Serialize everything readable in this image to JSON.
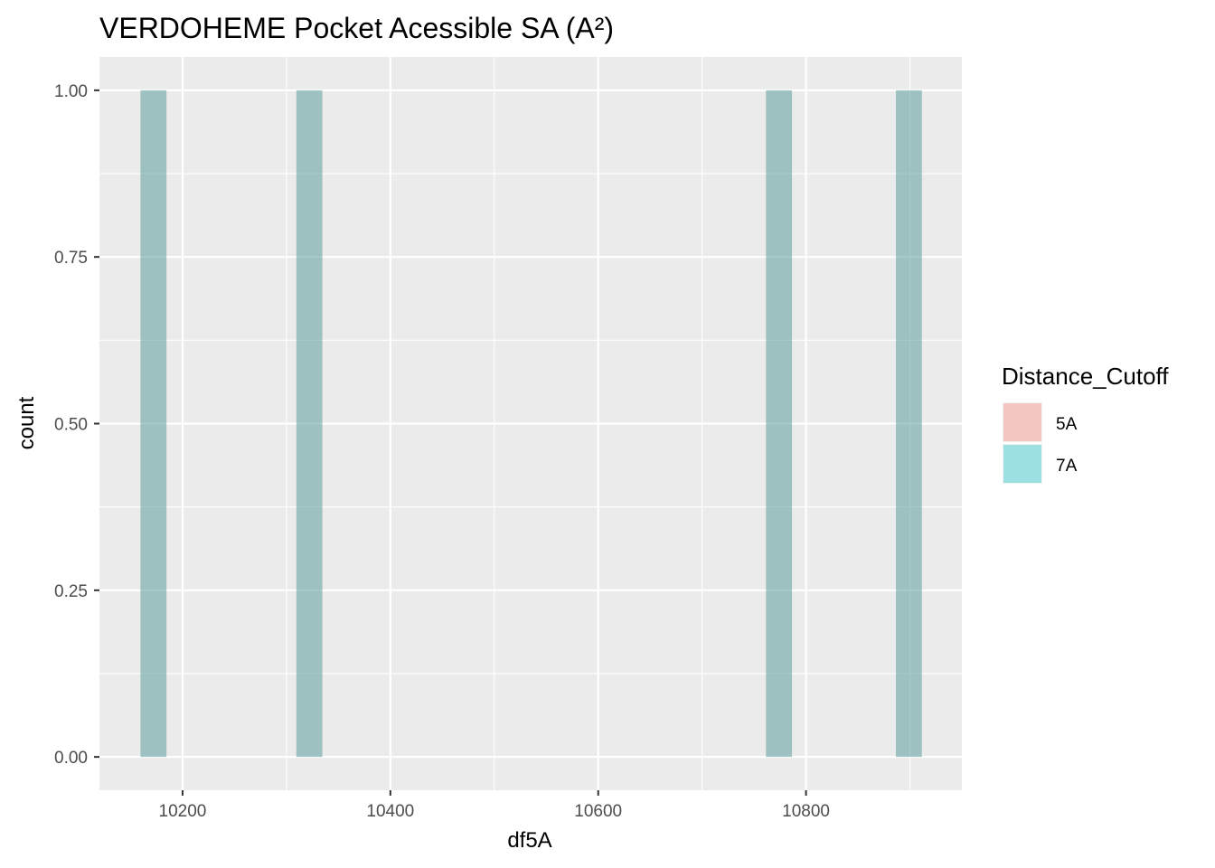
{
  "chart_data": {
    "type": "histogram",
    "title": "VERDOHEME Pocket Acessible SA (A²)",
    "xlabel": "df5A",
    "ylabel": "count",
    "xlim": [
      10120,
      10950
    ],
    "ylim": [
      -0.05,
      1.05
    ],
    "x_ticks": [
      10200,
      10400,
      10600,
      10800
    ],
    "x_tick_labels": [
      "10200",
      "10400",
      "10600",
      "10800"
    ],
    "y_ticks": [
      0.0,
      0.25,
      0.5,
      0.75,
      1.0
    ],
    "y_tick_labels": [
      "0.00",
      "0.25",
      "0.50",
      "0.75",
      "1.00"
    ],
    "grid": true,
    "bin_width": 25,
    "series": [
      {
        "name": "5A",
        "color": "#f8766d",
        "bins": [
          {
            "x": 10172,
            "count": 1
          },
          {
            "x": 10322,
            "count": 1
          },
          {
            "x": 10774,
            "count": 1
          },
          {
            "x": 10899,
            "count": 1
          }
        ]
      },
      {
        "name": "7A",
        "color": "#00bfc4",
        "bins": [
          {
            "x": 10172,
            "count": 1
          },
          {
            "x": 10322,
            "count": 1
          },
          {
            "x": 10774,
            "count": 1
          },
          {
            "x": 10899,
            "count": 1
          }
        ]
      }
    ],
    "legend": {
      "title": "Distance_Cutoff",
      "position": "right",
      "entries": [
        {
          "label": "5A",
          "color": "#f8766d"
        },
        {
          "label": "7A",
          "color": "#00bfc4"
        }
      ]
    },
    "colors": {
      "panel_background": "#ebebeb",
      "grid": "#ffffff"
    }
  }
}
